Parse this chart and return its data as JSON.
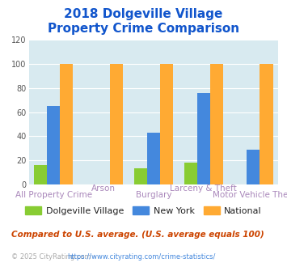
{
  "title_line1": "2018 Dolgeville Village",
  "title_line2": "Property Crime Comparison",
  "categories": [
    "All Property Crime",
    "Arson",
    "Burglary",
    "Larceny & Theft",
    "Motor Vehicle Theft"
  ],
  "cat_row": [
    0,
    1,
    0,
    1,
    0
  ],
  "dolgeville": [
    16,
    0,
    13,
    18,
    0
  ],
  "new_york": [
    65,
    0,
    43,
    76,
    29
  ],
  "national": [
    100,
    100,
    100,
    100,
    100
  ],
  "colors": {
    "dolgeville": "#88cc33",
    "new_york": "#4488dd",
    "national": "#ffaa33"
  },
  "ylim": [
    0,
    120
  ],
  "yticks": [
    0,
    20,
    40,
    60,
    80,
    100,
    120
  ],
  "title_fontsize": 11,
  "legend_fontsize": 8,
  "cat_fontsize": 7.5,
  "note_text": "Compared to U.S. average. (U.S. average equals 100)",
  "footer_text": "© 2025 CityRating.com - https://www.cityrating.com/crime-statistics/",
  "bg_color": "#ffffff",
  "plot_bg_color": "#d8eaf0",
  "title_color": "#1155cc",
  "cat_color": "#aa88bb",
  "note_color": "#cc4400",
  "footer_color": "#aaaaaa",
  "footer_link_color": "#4488dd"
}
